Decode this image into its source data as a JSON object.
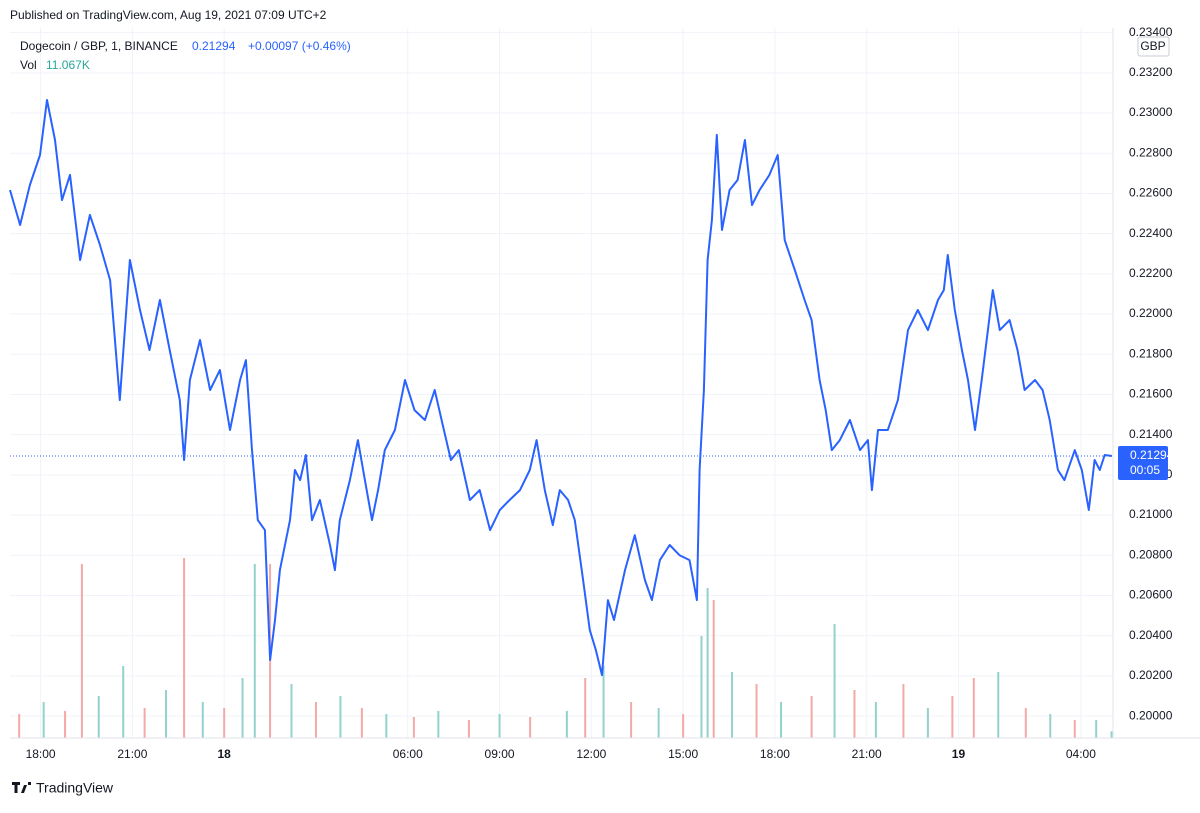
{
  "header": {
    "published": "Published on TradingView.com, Aug 19, 2021 07:09 UTC+2",
    "footer": "TradingView"
  },
  "chart_data": {
    "type": "line",
    "symbol": "Dogecoin / GBP, 1, BINANCE",
    "last_label": "0.21294",
    "change_label": "+0.00097 (+0.46%)",
    "countdown": "00:05",
    "currency": "GBP",
    "volume_label": "Vol",
    "volume_value_label": "11.067K",
    "grid": true,
    "xlim": [
      17,
      53.05
    ],
    "ylim": [
      0.19891,
      0.23423
    ],
    "xticks": [
      {
        "value": 18,
        "label": "18:00"
      },
      {
        "value": 21,
        "label": "21:00"
      },
      {
        "value": 24,
        "label": "18"
      },
      {
        "value": 30,
        "label": "06:00"
      },
      {
        "value": 33,
        "label": "09:00"
      },
      {
        "value": 36,
        "label": "12:00"
      },
      {
        "value": 39,
        "label": "15:00"
      },
      {
        "value": 42,
        "label": "18:00"
      },
      {
        "value": 45,
        "label": "21:00"
      },
      {
        "value": 48,
        "label": "19"
      },
      {
        "value": 52,
        "label": "04:00"
      }
    ],
    "yticks": [
      {
        "value": 0.2,
        "label": "0.20000"
      },
      {
        "value": 0.202,
        "label": "0.20200"
      },
      {
        "value": 0.204,
        "label": "0.20400"
      },
      {
        "value": 0.206,
        "label": "0.20600"
      },
      {
        "value": 0.208,
        "label": "0.20800"
      },
      {
        "value": 0.21,
        "label": "0.21000"
      },
      {
        "value": 0.212,
        "label": "0.21200"
      },
      {
        "value": 0.214,
        "label": "0.21400"
      },
      {
        "value": 0.216,
        "label": "0.21600"
      },
      {
        "value": 0.218,
        "label": "0.21800"
      },
      {
        "value": 0.22,
        "label": "0.22000"
      },
      {
        "value": 0.222,
        "label": "0.22200"
      },
      {
        "value": 0.224,
        "label": "0.22400"
      },
      {
        "value": 0.226,
        "label": "0.22600"
      },
      {
        "value": 0.228,
        "label": "0.22800"
      },
      {
        "value": 0.23,
        "label": "0.23000"
      },
      {
        "value": 0.232,
        "label": "0.23200"
      },
      {
        "value": 0.234,
        "label": "0.23400"
      }
    ],
    "series": [
      {
        "name": "Dogecoin / GBP",
        "color": "#2962ff",
        "x": [
          17.0,
          17.33,
          17.65,
          17.98,
          18.21,
          18.47,
          18.7,
          18.96,
          19.29,
          19.61,
          19.94,
          20.27,
          20.59,
          20.92,
          21.25,
          21.56,
          21.9,
          22.22,
          22.55,
          22.69,
          22.88,
          23.21,
          23.54,
          23.86,
          24.19,
          24.52,
          24.71,
          24.91,
          25.1,
          25.33,
          25.5,
          25.66,
          25.82,
          26.15,
          26.31,
          26.48,
          26.67,
          26.87,
          27.13,
          27.46,
          27.62,
          27.78,
          28.11,
          28.37,
          28.6,
          28.83,
          29.03,
          29.25,
          29.58,
          29.91,
          30.22,
          30.56,
          30.88,
          31.18,
          31.41,
          31.67,
          32.03,
          32.35,
          32.69,
          33.01,
          33.33,
          33.67,
          33.99,
          34.21,
          34.48,
          34.74,
          34.97,
          35.24,
          35.46,
          35.73,
          35.95,
          36.15,
          36.35,
          36.54,
          36.74,
          37.1,
          37.42,
          37.75,
          37.98,
          38.24,
          38.56,
          38.88,
          39.21,
          39.45,
          39.54,
          39.68,
          39.8,
          39.94,
          40.1,
          40.27,
          40.52,
          40.78,
          41.02,
          41.25,
          41.5,
          41.82,
          42.09,
          42.32,
          42.65,
          42.97,
          43.2,
          43.46,
          43.66,
          43.86,
          44.12,
          44.45,
          44.78,
          45.04,
          45.17,
          45.37,
          45.69,
          46.02,
          46.35,
          46.67,
          47.0,
          47.33,
          47.52,
          47.65,
          47.88,
          48.11,
          48.31,
          48.54,
          48.76,
          48.96,
          49.12,
          49.35,
          49.67,
          49.93,
          50.16,
          50.5,
          50.75,
          50.98,
          51.25,
          51.46,
          51.8,
          52.03,
          52.26,
          52.45,
          52.62,
          52.78,
          53.01
        ],
        "values": [
          0.22617,
          0.22443,
          0.22642,
          0.22791,
          0.23065,
          0.22866,
          0.22567,
          0.22692,
          0.22269,
          0.22493,
          0.22343,
          0.22169,
          0.21572,
          0.22269,
          0.2202,
          0.21821,
          0.2207,
          0.21821,
          0.21572,
          0.21274,
          0.21672,
          0.21871,
          0.21622,
          0.21721,
          0.21423,
          0.21672,
          0.21771,
          0.21323,
          0.20975,
          0.20925,
          0.20279,
          0.20478,
          0.20726,
          0.20975,
          0.21224,
          0.21174,
          0.21299,
          0.20975,
          0.21075,
          0.20851,
          0.20726,
          0.20975,
          0.21174,
          0.21373,
          0.21174,
          0.20975,
          0.21124,
          0.21323,
          0.21423,
          0.21672,
          0.21522,
          0.21473,
          0.21622,
          0.21423,
          0.21274,
          0.21323,
          0.21075,
          0.21124,
          0.20925,
          0.21025,
          0.21075,
          0.21124,
          0.21224,
          0.21373,
          0.21124,
          0.2095,
          0.21124,
          0.21075,
          0.20975,
          0.20677,
          0.20428,
          0.20328,
          0.20204,
          0.20577,
          0.20478,
          0.20726,
          0.209,
          0.20677,
          0.20577,
          0.20776,
          0.20851,
          0.20801,
          0.20776,
          0.20577,
          0.21224,
          0.21622,
          0.22269,
          0.22468,
          0.22891,
          0.22418,
          0.22617,
          0.22667,
          0.22866,
          0.22542,
          0.22617,
          0.22692,
          0.22791,
          0.22368,
          0.22219,
          0.2207,
          0.2197,
          0.21672,
          0.21522,
          0.21323,
          0.21373,
          0.21473,
          0.21323,
          0.21373,
          0.21124,
          0.21423,
          0.21423,
          0.21572,
          0.2192,
          0.2202,
          0.2192,
          0.2207,
          0.22119,
          0.22294,
          0.2202,
          0.21821,
          0.21672,
          0.21423,
          0.21672,
          0.2192,
          0.22119,
          0.2192,
          0.2197,
          0.21821,
          0.21622,
          0.21672,
          0.21622,
          0.21473,
          0.21224,
          0.21174,
          0.21323,
          0.21224,
          0.21025,
          0.21274,
          0.21224,
          0.21299,
          0.21294
        ]
      }
    ],
    "volume": {
      "x": [
        17.3,
        18.1,
        18.8,
        19.35,
        19.9,
        20.7,
        21.4,
        22.1,
        22.69,
        23.3,
        24.0,
        24.6,
        25.0,
        25.5,
        26.2,
        27.0,
        27.8,
        28.5,
        29.3,
        30.2,
        31.0,
        32.0,
        33.0,
        34.0,
        35.2,
        35.8,
        36.4,
        37.3,
        38.2,
        39.0,
        39.6,
        39.8,
        40.0,
        40.6,
        41.4,
        42.2,
        43.2,
        43.95,
        44.6,
        45.3,
        46.2,
        47.0,
        47.8,
        48.5,
        49.3,
        50.2,
        51.0,
        51.8,
        52.5,
        53.0
      ],
      "values": [
        40,
        60,
        45,
        290,
        70,
        120,
        50,
        80,
        300,
        60,
        50,
        100,
        290,
        290,
        90,
        60,
        70,
        50,
        40,
        35,
        45,
        30,
        40,
        35,
        45,
        100,
        120,
        60,
        50,
        40,
        170,
        250,
        230,
        110,
        90,
        60,
        70,
        190,
        80,
        60,
        90,
        50,
        70,
        100,
        110,
        50,
        40,
        30,
        30,
        11.067
      ],
      "colors": [
        "#f4a9a7",
        "#93d2cc",
        "#f4a9a7",
        "#f4a9a7",
        "#93d2cc",
        "#93d2cc",
        "#f4a9a7",
        "#93d2cc",
        "#f4a9a7",
        "#93d2cc",
        "#f4a9a7",
        "#93d2cc",
        "#93d2cc",
        "#f4a9a7",
        "#93d2cc",
        "#f4a9a7",
        "#93d2cc",
        "#f4a9a7",
        "#93d2cc",
        "#f4a9a7",
        "#93d2cc",
        "#f4a9a7",
        "#93d2cc",
        "#f4a9a7",
        "#93d2cc",
        "#f4a9a7",
        "#93d2cc",
        "#f4a9a7",
        "#93d2cc",
        "#f4a9a7",
        "#93d2cc",
        "#93d2cc",
        "#f4a9a7",
        "#93d2cc",
        "#f4a9a7",
        "#93d2cc",
        "#f4a9a7",
        "#93d2cc",
        "#f4a9a7",
        "#93d2cc",
        "#f4a9a7",
        "#93d2cc",
        "#f4a9a7",
        "#f4a9a7",
        "#93d2cc",
        "#f4a9a7",
        "#93d2cc",
        "#f4a9a7",
        "#93d2cc",
        "#93d2cc"
      ]
    }
  }
}
